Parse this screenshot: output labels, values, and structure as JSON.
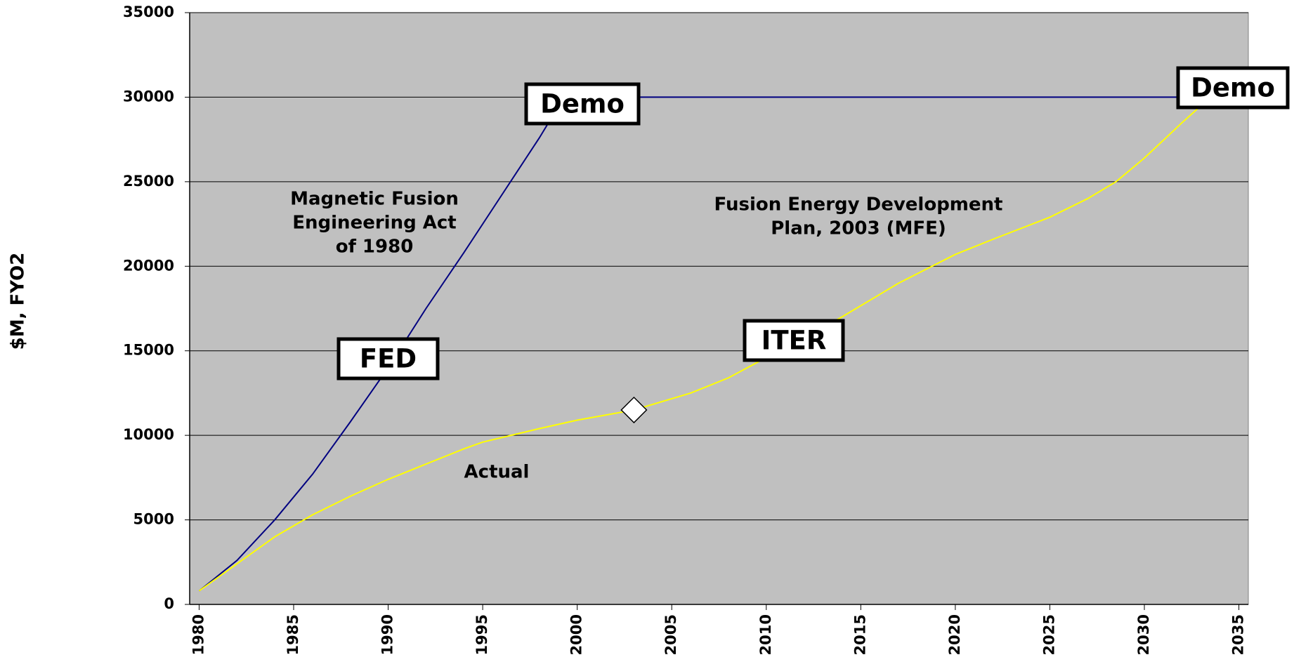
{
  "chart_data": {
    "type": "line",
    "y_label": "$M, FYO2",
    "xlim": [
      1979.5,
      2035.5
    ],
    "xticks": [
      1980,
      1985,
      1990,
      1995,
      2000,
      2005,
      2010,
      2015,
      2020,
      2025,
      2030,
      2035
    ],
    "ylim": [
      0,
      35000
    ],
    "yticks": [
      0,
      5000,
      10000,
      15000,
      20000,
      25000,
      30000,
      35000
    ],
    "grid": true,
    "plot_background": "#c0c0c0",
    "series": [
      {
        "color": "#000080",
        "x": [
          1980,
          1982,
          1984,
          1986,
          1988,
          1990,
          1992,
          1994,
          1996,
          1998,
          1999.3,
          2033
        ],
        "values": [
          800,
          2600,
          5000,
          7700,
          10800,
          14000,
          17500,
          20800,
          24200,
          27600,
          30000,
          30000
        ]
      },
      {
        "color": "#ffff00",
        "x": [
          1980,
          1982,
          1984,
          1986,
          1988,
          1990,
          1992,
          1994,
          1995,
          1998,
          2000,
          2003,
          2006,
          2008,
          2010,
          2012,
          2014,
          2017,
          2020,
          2022,
          2025,
          2027,
          2028.5,
          2030,
          2032,
          2033.5
        ],
        "values": [
          800,
          2400,
          4000,
          5300,
          6400,
          7400,
          8300,
          9200,
          9600,
          10400,
          10900,
          11500,
          12500,
          13400,
          14600,
          15800,
          17000,
          19000,
          20700,
          21600,
          22900,
          24000,
          25000,
          26400,
          28500,
          30000
        ]
      }
    ],
    "marker": {
      "x": 2003,
      "value": 11500,
      "color": "#ffffff"
    },
    "annotations": [
      {
        "lines": [
          "Magnetic Fusion",
          "Engineering Act",
          "of 1980"
        ]
      },
      {
        "lines": [
          "Fusion Energy Development",
          "Plan, 2003 (MFE)"
        ]
      },
      {
        "lines": [
          "Actual"
        ]
      }
    ],
    "boxed_labels": [
      "Demo",
      "Demo",
      "FED",
      "ITER"
    ]
  }
}
